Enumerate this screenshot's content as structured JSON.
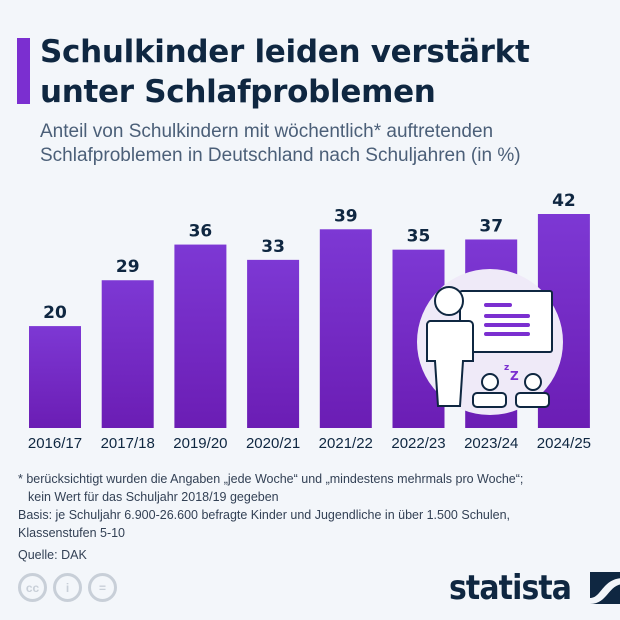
{
  "title": "Schulkinder leiden verstärkt unter Schlafproblemen",
  "subtitle": "Anteil von Schulkindern mit wöchentlich* auftretenden Schlafproblemen in Deutschland nach Schuljahren (in %)",
  "colors": {
    "bar_top": "#7d38d4",
    "bar_bottom": "#6b1db4",
    "background": "#f3f6fa",
    "title": "#0f2741"
  },
  "chart_data": {
    "type": "bar",
    "categories": [
      "2016/17",
      "2017/18",
      "2019/20",
      "2020/21",
      "2021/22",
      "2022/23",
      "2023/24",
      "2024/25"
    ],
    "values": [
      20,
      29,
      36,
      33,
      39,
      35,
      37,
      42
    ],
    "ylim": [
      0,
      42
    ],
    "grid": false,
    "data_labels": true
  },
  "illustration": "teacher-whiteboard-sleeping-students",
  "notes": {
    "footnote_line1": "* berücksichtigt wurden die Angaben „jede Woche“ und „mindestens mehrmals pro Woche“;",
    "footnote_line2": "kein Wert für das Schuljahr 2018/19 gegeben",
    "basis_line1": "Basis: je Schuljahr 6.900-26.600 befragte Kinder und Jugendliche in über 1.500 Schulen,",
    "basis_line2": "Klassenstufen 5-10",
    "source": "Quelle: DAK"
  },
  "license_icons": [
    "cc-icon",
    "attribution-icon",
    "no-derivatives-icon"
  ],
  "logo": "statista"
}
